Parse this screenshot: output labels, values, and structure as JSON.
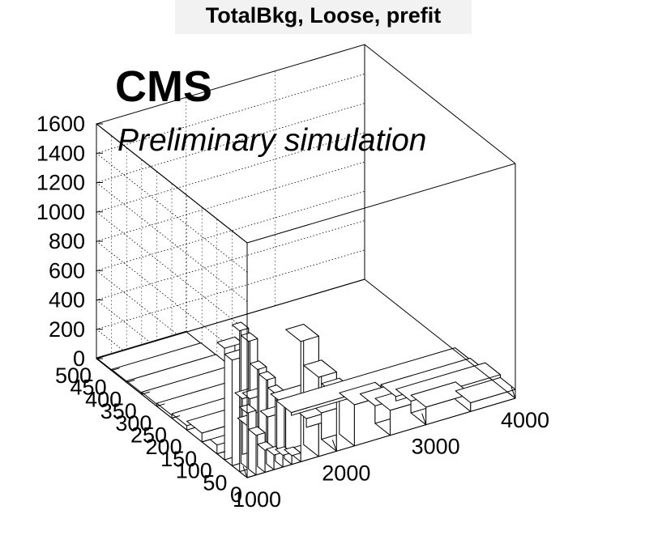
{
  "title": "TotalBkg, Loose, prefit",
  "cms_label": "CMS",
  "sub_label": "Preliminary simulation",
  "chart_data": {
    "type": "lego",
    "x_axis": {
      "range": [
        1000,
        4000
      ],
      "tick_labels": [
        "1000",
        "2000",
        "3000",
        "4000"
      ],
      "bin_edges": [
        1000,
        1100,
        1200,
        1300,
        1400,
        1500,
        1600,
        1700,
        1800,
        1900,
        2000,
        2200,
        2400,
        2600,
        2800,
        3000,
        3500,
        4000
      ]
    },
    "y_axis": {
      "range": [
        0,
        500
      ],
      "tick_labels": [
        "0",
        "50",
        "100",
        "150",
        "200",
        "250",
        "300",
        "350",
        "400",
        "450",
        "500"
      ],
      "bin_edges": [
        0,
        25,
        50,
        75,
        100,
        150,
        200,
        250,
        300,
        350,
        400,
        450,
        500
      ]
    },
    "z_axis": {
      "range": [
        0,
        1600
      ],
      "tick_labels": [
        "0",
        "200",
        "400",
        "600",
        "800",
        "1000",
        "1200",
        "1400",
        "1600"
      ]
    },
    "grid": true,
    "bins": [
      {
        "x": [
          1000,
          1100
        ],
        "y": [
          0,
          25
        ],
        "z": 440
      },
      {
        "x": [
          1100,
          1200
        ],
        "y": [
          0,
          25
        ],
        "z": 270
      },
      {
        "x": [
          1200,
          1300
        ],
        "y": [
          0,
          25
        ],
        "z": 150
      },
      {
        "x": [
          1300,
          1400
        ],
        "y": [
          0,
          25
        ],
        "z": 100
      },
      {
        "x": [
          1400,
          1500
        ],
        "y": [
          0,
          25
        ],
        "z": 80
      },
      {
        "x": [
          1500,
          1600
        ],
        "y": [
          0,
          25
        ],
        "z": 60
      },
      {
        "x": [
          1000,
          1100
        ],
        "y": [
          25,
          50
        ],
        "z": 960
      },
      {
        "x": [
          1100,
          1200
        ],
        "y": [
          25,
          50
        ],
        "z": 870
      },
      {
        "x": [
          1200,
          1300
        ],
        "y": [
          25,
          50
        ],
        "z": 660
      },
      {
        "x": [
          1300,
          1400
        ],
        "y": [
          25,
          50
        ],
        "z": 570
      },
      {
        "x": [
          1400,
          1500
        ],
        "y": [
          25,
          50
        ],
        "z": 460
      },
      {
        "x": [
          1500,
          1600
        ],
        "y": [
          25,
          50
        ],
        "z": 370
      },
      {
        "x": [
          1600,
          1800
        ],
        "y": [
          0,
          50
        ],
        "z": 820
      },
      {
        "x": [
          1800,
          2000
        ],
        "y": [
          0,
          50
        ],
        "z": 540
      },
      {
        "x": [
          2000,
          2200
        ],
        "y": [
          0,
          50
        ],
        "z": 380
      },
      {
        "x": [
          2200,
          2600
        ],
        "y": [
          0,
          50
        ],
        "z": 280
      },
      {
        "x": [
          2600,
          3000
        ],
        "y": [
          0,
          50
        ],
        "z": 170
      },
      {
        "x": [
          3000,
          3500
        ],
        "y": [
          0,
          50
        ],
        "z": 120
      },
      {
        "x": [
          3500,
          4000
        ],
        "y": [
          0,
          50
        ],
        "z": 60
      },
      {
        "x": [
          1000,
          1200
        ],
        "y": [
          50,
          75
        ],
        "z": 720
      },
      {
        "x": [
          1200,
          1400
        ],
        "y": [
          50,
          75
        ],
        "z": 420
      },
      {
        "x": [
          1400,
          1600
        ],
        "y": [
          50,
          75
        ],
        "z": 260
      },
      {
        "x": [
          1600,
          2000
        ],
        "y": [
          50,
          100
        ],
        "z": 300
      },
      {
        "x": [
          2000,
          2600
        ],
        "y": [
          50,
          100
        ],
        "z": 180
      },
      {
        "x": [
          2600,
          3000
        ],
        "y": [
          50,
          100
        ],
        "z": 120
      },
      {
        "x": [
          3000,
          4000
        ],
        "y": [
          50,
          100
        ],
        "z": 80
      },
      {
        "x": [
          1000,
          1200
        ],
        "y": [
          75,
          100
        ],
        "z": 760
      },
      {
        "x": [
          1200,
          1600
        ],
        "y": [
          75,
          100
        ],
        "z": 380
      },
      {
        "x": [
          1000,
          1400
        ],
        "y": [
          100,
          150
        ],
        "z": 60
      },
      {
        "x": [
          1400,
          2000
        ],
        "y": [
          100,
          150
        ],
        "z": 90
      },
      {
        "x": [
          2000,
          3000
        ],
        "y": [
          100,
          150
        ],
        "z": 60
      },
      {
        "x": [
          3000,
          4000
        ],
        "y": [
          100,
          150
        ],
        "z": 30
      },
      {
        "x": [
          1000,
          2000
        ],
        "y": [
          150,
          200
        ],
        "z": 60
      },
      {
        "x": [
          2000,
          4000
        ],
        "y": [
          150,
          200
        ],
        "z": 20
      },
      {
        "x": [
          1000,
          2000
        ],
        "y": [
          200,
          250
        ],
        "z": 30
      },
      {
        "x": [
          1000,
          2000
        ],
        "y": [
          250,
          300
        ],
        "z": 20
      },
      {
        "x": [
          1000,
          2000
        ],
        "y": [
          300,
          350
        ],
        "z": 15
      },
      {
        "x": [
          1000,
          2000
        ],
        "y": [
          350,
          400
        ],
        "z": 10
      },
      {
        "x": [
          1000,
          2000
        ],
        "y": [
          400,
          450
        ],
        "z": 8
      },
      {
        "x": [
          1000,
          2000
        ],
        "y": [
          450,
          500
        ],
        "z": 5
      }
    ]
  }
}
